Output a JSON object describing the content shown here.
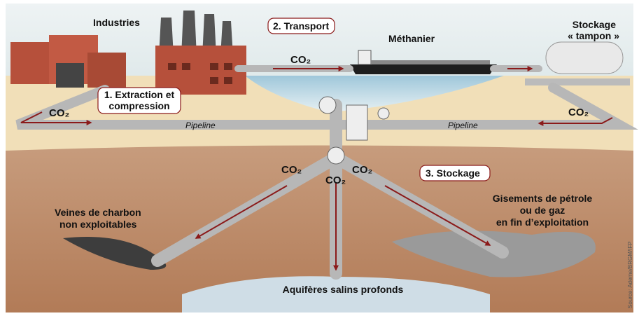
{
  "labels": {
    "industries": "Industries",
    "transport": "2. Transport",
    "methanier": "Méthanier",
    "stockage_tampon": [
      "Stockage",
      "« tampon »"
    ],
    "extraction": [
      "1. Extraction et",
      "compression"
    ],
    "pipeline_left": "Pipeline",
    "pipeline_right": "Pipeline",
    "stockage": "3. Stockage",
    "charbon": [
      "Veines de charbon",
      "non exploitables"
    ],
    "gisements": [
      "Gisements de pétrole",
      "ou de gaz",
      "en fin d’exploitation"
    ],
    "aquiferes": "Aquifères salins profonds",
    "source": "Source: Ademe/BRGM/IFP"
  },
  "co2": [
    "CO₂",
    "CO₂",
    "CO₂",
    "CO₂",
    "CO₂",
    "CO₂"
  ]
}
